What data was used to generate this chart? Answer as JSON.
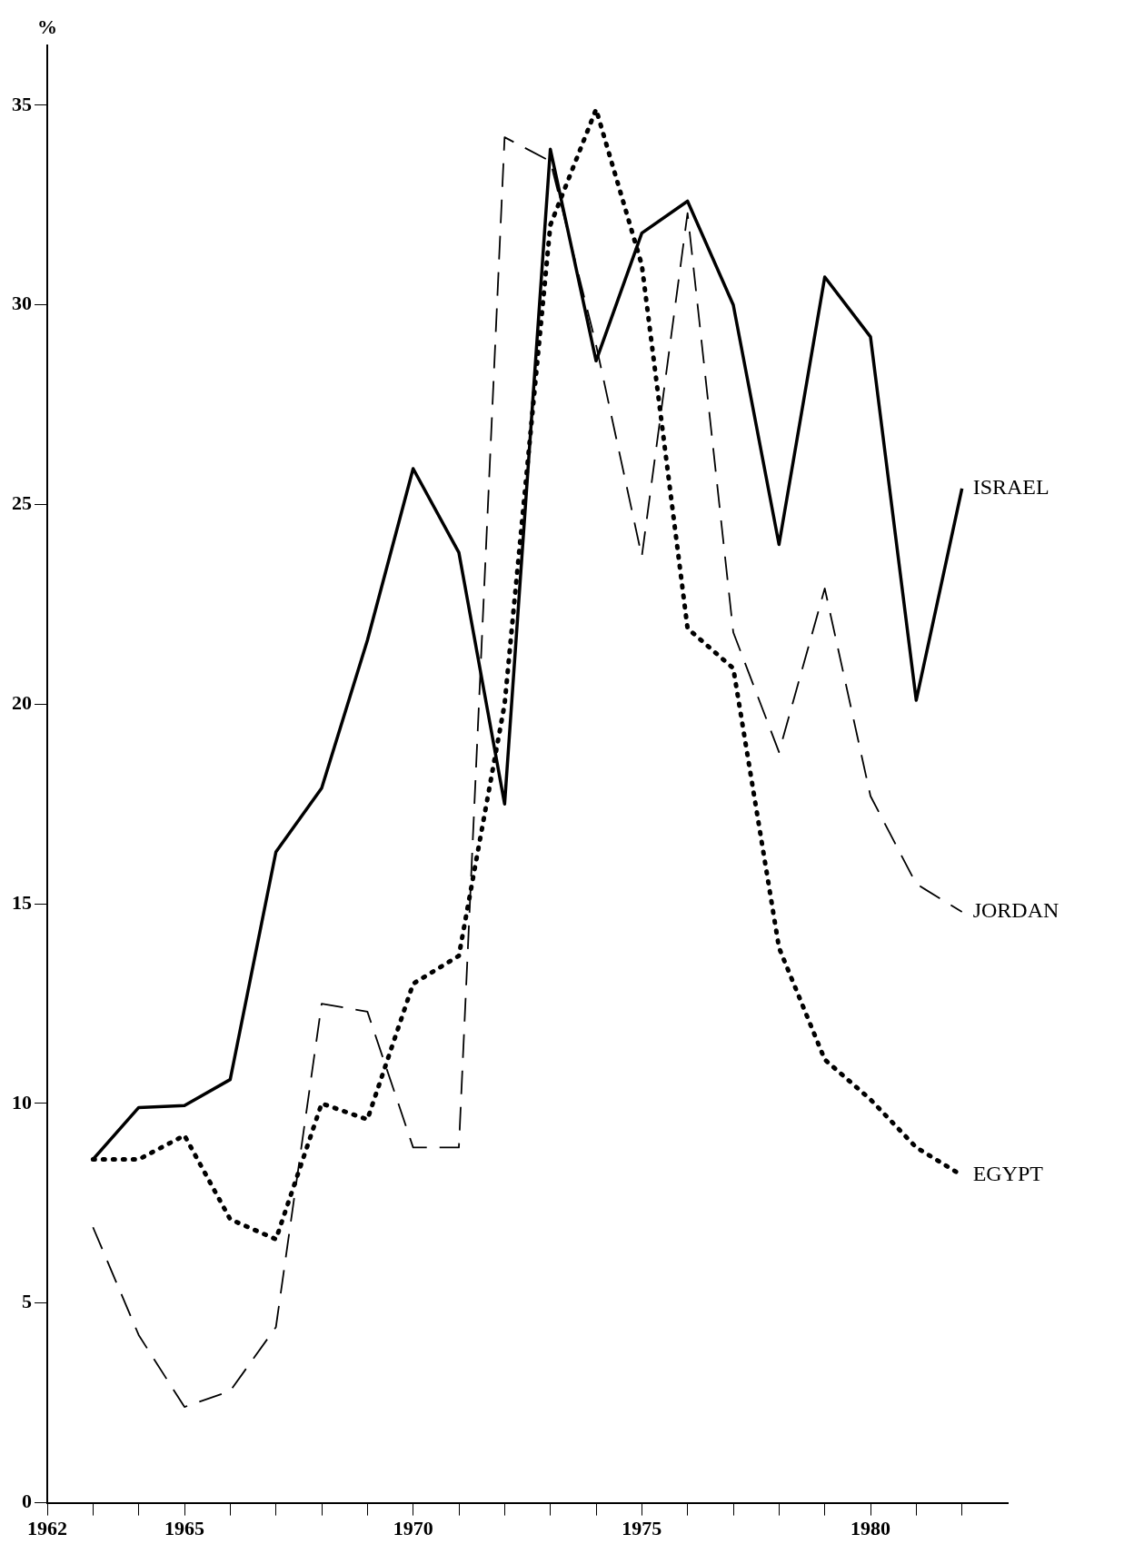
{
  "chart_data": {
    "type": "line",
    "ylabel": "%",
    "x": [
      1963,
      1964,
      1965,
      1966,
      1967,
      1968,
      1969,
      1970,
      1971,
      1972,
      1973,
      1974,
      1975,
      1976,
      1977,
      1978,
      1979,
      1980,
      1981,
      1982
    ],
    "xlim": [
      1962,
      1983
    ],
    "xticks": [
      1962,
      {
        "value": 1963,
        "label": null
      },
      {
        "value": 1964,
        "label": null
      },
      1965,
      {
        "value": 1966,
        "label": null
      },
      {
        "value": 1967,
        "label": null
      },
      {
        "value": 1968,
        "label": null
      },
      {
        "value": 1969,
        "label": null
      },
      1970,
      {
        "value": 1971,
        "label": null
      },
      {
        "value": 1972,
        "label": null
      },
      {
        "value": 1973,
        "label": null
      },
      {
        "value": 1974,
        "label": null
      },
      1975,
      {
        "value": 1976,
        "label": null
      },
      {
        "value": 1977,
        "label": null
      },
      {
        "value": 1978,
        "label": null
      },
      {
        "value": 1979,
        "label": null
      },
      1980,
      {
        "value": 1981,
        "label": null
      },
      {
        "value": 1982,
        "label": null
      }
    ],
    "ylim": [
      0,
      36.5
    ],
    "yticks": [
      0,
      5,
      10,
      15,
      20,
      25,
      30,
      35
    ],
    "series": [
      {
        "name": "ISRAEL",
        "color": "#000000",
        "line_style": "solid",
        "values": [
          8.6,
          9.9,
          9.95,
          10.6,
          16.3,
          17.9,
          21.6,
          25.9,
          23.8,
          17.5,
          33.9,
          28.6,
          31.8,
          32.6,
          30.0,
          24.0,
          30.7,
          29.2,
          20.1,
          25.4
        ]
      },
      {
        "name": "JORDAN",
        "color": "#000000",
        "line_style": "dashed",
        "values": [
          6.9,
          4.2,
          2.4,
          2.8,
          4.4,
          12.5,
          12.3,
          8.9,
          8.9,
          34.2,
          33.6,
          29.0,
          23.7,
          32.3,
          21.8,
          18.8,
          22.9,
          17.7,
          15.5,
          14.8
        ]
      },
      {
        "name": "EGYPT",
        "color": "#000000",
        "line_style": "dotted",
        "values": [
          8.6,
          8.6,
          9.2,
          7.1,
          6.6,
          10.0,
          9.6,
          13.0,
          13.7,
          20.0,
          32.0,
          34.9,
          31.0,
          21.9,
          20.9,
          13.9,
          11.1,
          10.1,
          8.9,
          8.2
        ]
      }
    ],
    "grid": false,
    "legend": false
  }
}
